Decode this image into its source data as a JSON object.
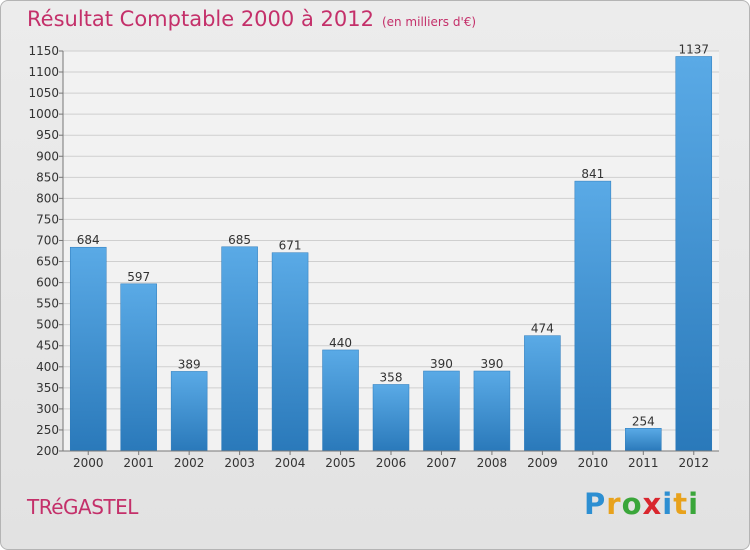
{
  "title": "Résultat Comptable 2000 à 2012",
  "subtitle": "(en milliers d'€)",
  "place_name": "TRéGASTEL",
  "logo": {
    "text": "Proxiti",
    "letters": [
      "P",
      "r",
      "o",
      "x",
      "i",
      "t",
      "i"
    ],
    "colors": [
      "#2d8fd2",
      "#e8a21c",
      "#3aa63a",
      "#d9262e",
      "#2d8fd2",
      "#e8a21c",
      "#3aa63a"
    ]
  },
  "colors": {
    "bar": "#3f96d8",
    "bar_dark": "#2a79ba",
    "title": "#c4306a"
  },
  "chart_data": {
    "type": "bar",
    "title": "Résultat Comptable 2000 à 2012",
    "subtitle": "(en milliers d'€)",
    "categories": [
      "2000",
      "2001",
      "2002",
      "2003",
      "2004",
      "2005",
      "2006",
      "2007",
      "2008",
      "2009",
      "2010",
      "2011",
      "2012"
    ],
    "values": [
      684,
      597,
      389,
      685,
      671,
      440,
      358,
      390,
      390,
      474,
      841,
      254,
      1137
    ],
    "ylim": [
      200,
      1150
    ],
    "yticks": [
      200,
      250,
      300,
      350,
      400,
      450,
      500,
      550,
      600,
      650,
      700,
      750,
      800,
      850,
      900,
      950,
      1000,
      1050,
      1100,
      1150
    ],
    "grid": true,
    "xlabel": "",
    "ylabel": ""
  }
}
